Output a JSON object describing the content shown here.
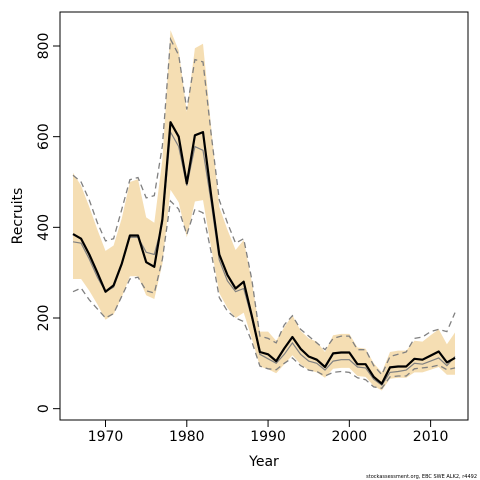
{
  "chart_data": {
    "type": "line",
    "title": "",
    "xlabel": "Year",
    "ylabel": "Recruits",
    "xlim": [
      1964.4,
      2014.6
    ],
    "ylim": [
      -25,
      875
    ],
    "xticks": [
      "1970",
      "1980",
      "1990",
      "2000",
      "2010"
    ],
    "yticks": [
      "0",
      "200",
      "400",
      "600",
      "800"
    ],
    "grid": false,
    "legend": "none",
    "credit": "stockassessment.org, EBC SWE ALK2, r4492",
    "colors": {
      "band": "#f5deb3",
      "estimate": "#000000",
      "thin_line": "#808080",
      "dashed": "#808080"
    },
    "x": [
      1966,
      1967,
      1968,
      1969,
      1970,
      1971,
      1972,
      1973,
      1974,
      1975,
      1976,
      1977,
      1978,
      1979,
      1980,
      1981,
      1982,
      1983,
      1984,
      1985,
      1986,
      1987,
      1988,
      1989,
      1990,
      1991,
      1992,
      1993,
      1994,
      1995,
      1996,
      1997,
      1998,
      1999,
      2000,
      2001,
      2002,
      2003,
      2004,
      2005,
      2006,
      2007,
      2008,
      2009,
      2010,
      2011,
      2012,
      2013
    ],
    "series": [
      {
        "role": "estimate",
        "values": [
          385,
          375,
          340,
          300,
          258,
          272,
          320,
          382,
          382,
          323,
          313,
          418,
          632,
          600,
          497,
          603,
          610,
          470,
          340,
          295,
          265,
          280,
          205,
          125,
          120,
          105,
          133,
          158,
          132,
          115,
          108,
          92,
          122,
          124,
          124,
          98,
          98,
          70,
          55,
          91,
          93,
          93,
          110,
          108,
          117,
          126,
          102,
          112
        ]
      },
      {
        "role": "thin",
        "values": [
          368,
          365,
          330,
          290,
          258,
          268,
          318,
          378,
          378,
          345,
          340,
          408,
          610,
          578,
          492,
          578,
          570,
          455,
          328,
          282,
          258,
          265,
          200,
          120,
          110,
          100,
          120,
          145,
          120,
          105,
          100,
          85,
          105,
          108,
          108,
          92,
          90,
          65,
          52,
          80,
          82,
          85,
          100,
          98,
          105,
          112,
          95,
          115
        ]
      },
      {
        "role": "upper",
        "values": [
          520,
          492,
          445,
          395,
          348,
          360,
          420,
          500,
          506,
          422,
          410,
          550,
          835,
          790,
          655,
          795,
          805,
          620,
          445,
          395,
          350,
          372,
          280,
          170,
          170,
          150,
          180,
          206,
          172,
          155,
          148,
          125,
          162,
          165,
          165,
          135,
          132,
          100,
          80,
          125,
          128,
          128,
          150,
          148,
          162,
          175,
          142,
          168
        ]
      },
      {
        "role": "lower",
        "values": [
          286,
          286,
          260,
          230,
          196,
          208,
          246,
          292,
          292,
          250,
          242,
          320,
          483,
          455,
          378,
          457,
          460,
          355,
          255,
          222,
          200,
          212,
          155,
          93,
          87,
          78,
          98,
          118,
          98,
          85,
          80,
          68,
          88,
          90,
          90,
          72,
          70,
          50,
          40,
          66,
          68,
          68,
          80,
          80,
          86,
          92,
          75,
          75
        ]
      },
      {
        "role": "dashed-upper",
        "values": [
          515,
          500,
          460,
          410,
          370,
          375,
          440,
          505,
          510,
          465,
          470,
          580,
          815,
          780,
          660,
          770,
          765,
          605,
          460,
          410,
          365,
          375,
          285,
          160,
          155,
          145,
          185,
          205,
          175,
          160,
          145,
          130,
          155,
          160,
          160,
          130,
          130,
          95,
          75,
          115,
          120,
          125,
          155,
          158,
          170,
          175,
          170,
          212
        ]
      },
      {
        "role": "dashed-lower",
        "values": [
          258,
          266,
          240,
          220,
          200,
          210,
          248,
          286,
          290,
          260,
          255,
          330,
          458,
          440,
          384,
          440,
          432,
          345,
          245,
          215,
          200,
          192,
          148,
          94,
          88,
          86,
          100,
          112,
          95,
          85,
          82,
          72,
          80,
          82,
          80,
          68,
          64,
          48,
          45,
          70,
          72,
          72,
          88,
          90,
          92,
          96,
          86,
          90
        ]
      }
    ]
  }
}
